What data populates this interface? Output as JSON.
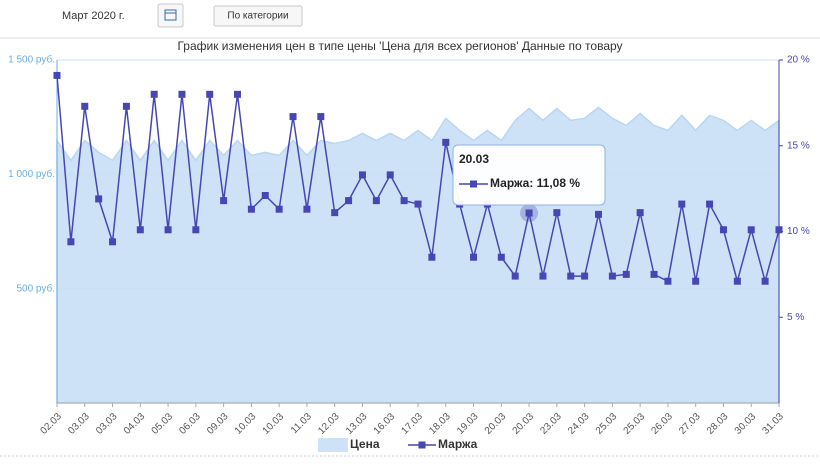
{
  "header": {
    "period": "Март 2020 г.",
    "button": "По категории"
  },
  "chart_data": {
    "type": "line",
    "title": "График изменения цен в типе цены 'Цена для всех регионов' Данные по товару",
    "categories": [
      "02.03",
      null,
      "03.03",
      null,
      "03.03",
      null,
      "04.03",
      null,
      "05.03",
      null,
      "06.03",
      null,
      "09.03",
      null,
      "10.03",
      null,
      "10.03",
      null,
      "11.03",
      null,
      "12.03",
      null,
      "13.03",
      null,
      "16.03",
      null,
      "17.03",
      null,
      "18.03",
      null,
      "19.03",
      null,
      "20.03",
      null,
      "20.03",
      null,
      "23.03",
      null,
      "24.03",
      null,
      "25.03",
      null,
      "25.03",
      null,
      "26.03",
      null,
      "27.03",
      null,
      "28.03",
      null,
      "30.03",
      null,
      "31.03"
    ],
    "series": [
      {
        "name": "Цена",
        "kind": "area",
        "color": "#cde2f7",
        "values": [
          1148,
          1061,
          1148,
          1096,
          1061,
          1148,
          1061,
          1148,
          1061,
          1148,
          1061,
          1148,
          1083,
          1148,
          1083,
          1096,
          1083,
          1148,
          1083,
          1148,
          1135,
          1148,
          1179,
          1148,
          1179,
          1148,
          1192,
          1148,
          1245,
          1192,
          1148,
          1192,
          1148,
          1236,
          1288,
          1236,
          1288,
          1236,
          1245,
          1293,
          1245,
          1214,
          1266,
          1214,
          1192,
          1258,
          1192,
          1258,
          1236,
          1192,
          1236,
          1192,
          1236
        ]
      },
      {
        "name": "Маржа",
        "kind": "line",
        "axis": "y2",
        "color": "#4646b4",
        "values": [
          19.1,
          9.4,
          17.3,
          11.9,
          9.4,
          17.3,
          10.1,
          18.0,
          10.1,
          18.0,
          10.1,
          18.0,
          11.8,
          18.0,
          11.3,
          12.1,
          11.3,
          16.7,
          11.3,
          16.7,
          11.1,
          11.8,
          13.3,
          11.8,
          13.3,
          11.8,
          11.6,
          8.5,
          15.2,
          11.6,
          8.5,
          11.6,
          8.5,
          7.4,
          11.08,
          7.4,
          11.1,
          7.4,
          7.4,
          11.0,
          7.4,
          7.5,
          11.1,
          7.5,
          7.1,
          11.6,
          7.1,
          11.6,
          10.1,
          7.1,
          10.1,
          7.1,
          10.1
        ]
      }
    ],
    "ylim": [
      0,
      1500
    ],
    "yticks": [
      {
        "value": 500,
        "label": "500 руб."
      },
      {
        "value": 1000,
        "label": "1 000 руб."
      },
      {
        "value": 1500,
        "label": "1 500 руб."
      }
    ],
    "y2lim": [
      0,
      20
    ],
    "y2ticks": [
      {
        "value": 5,
        "label": "5 %"
      },
      {
        "value": 10,
        "label": "10 %"
      },
      {
        "value": 15,
        "label": "15 %"
      },
      {
        "value": 20,
        "label": "20 %"
      }
    ],
    "grid": true,
    "legend": "bottom",
    "tooltip": {
      "index": 34,
      "title": "20.03",
      "text": "Маржа: 11,08 %"
    }
  }
}
